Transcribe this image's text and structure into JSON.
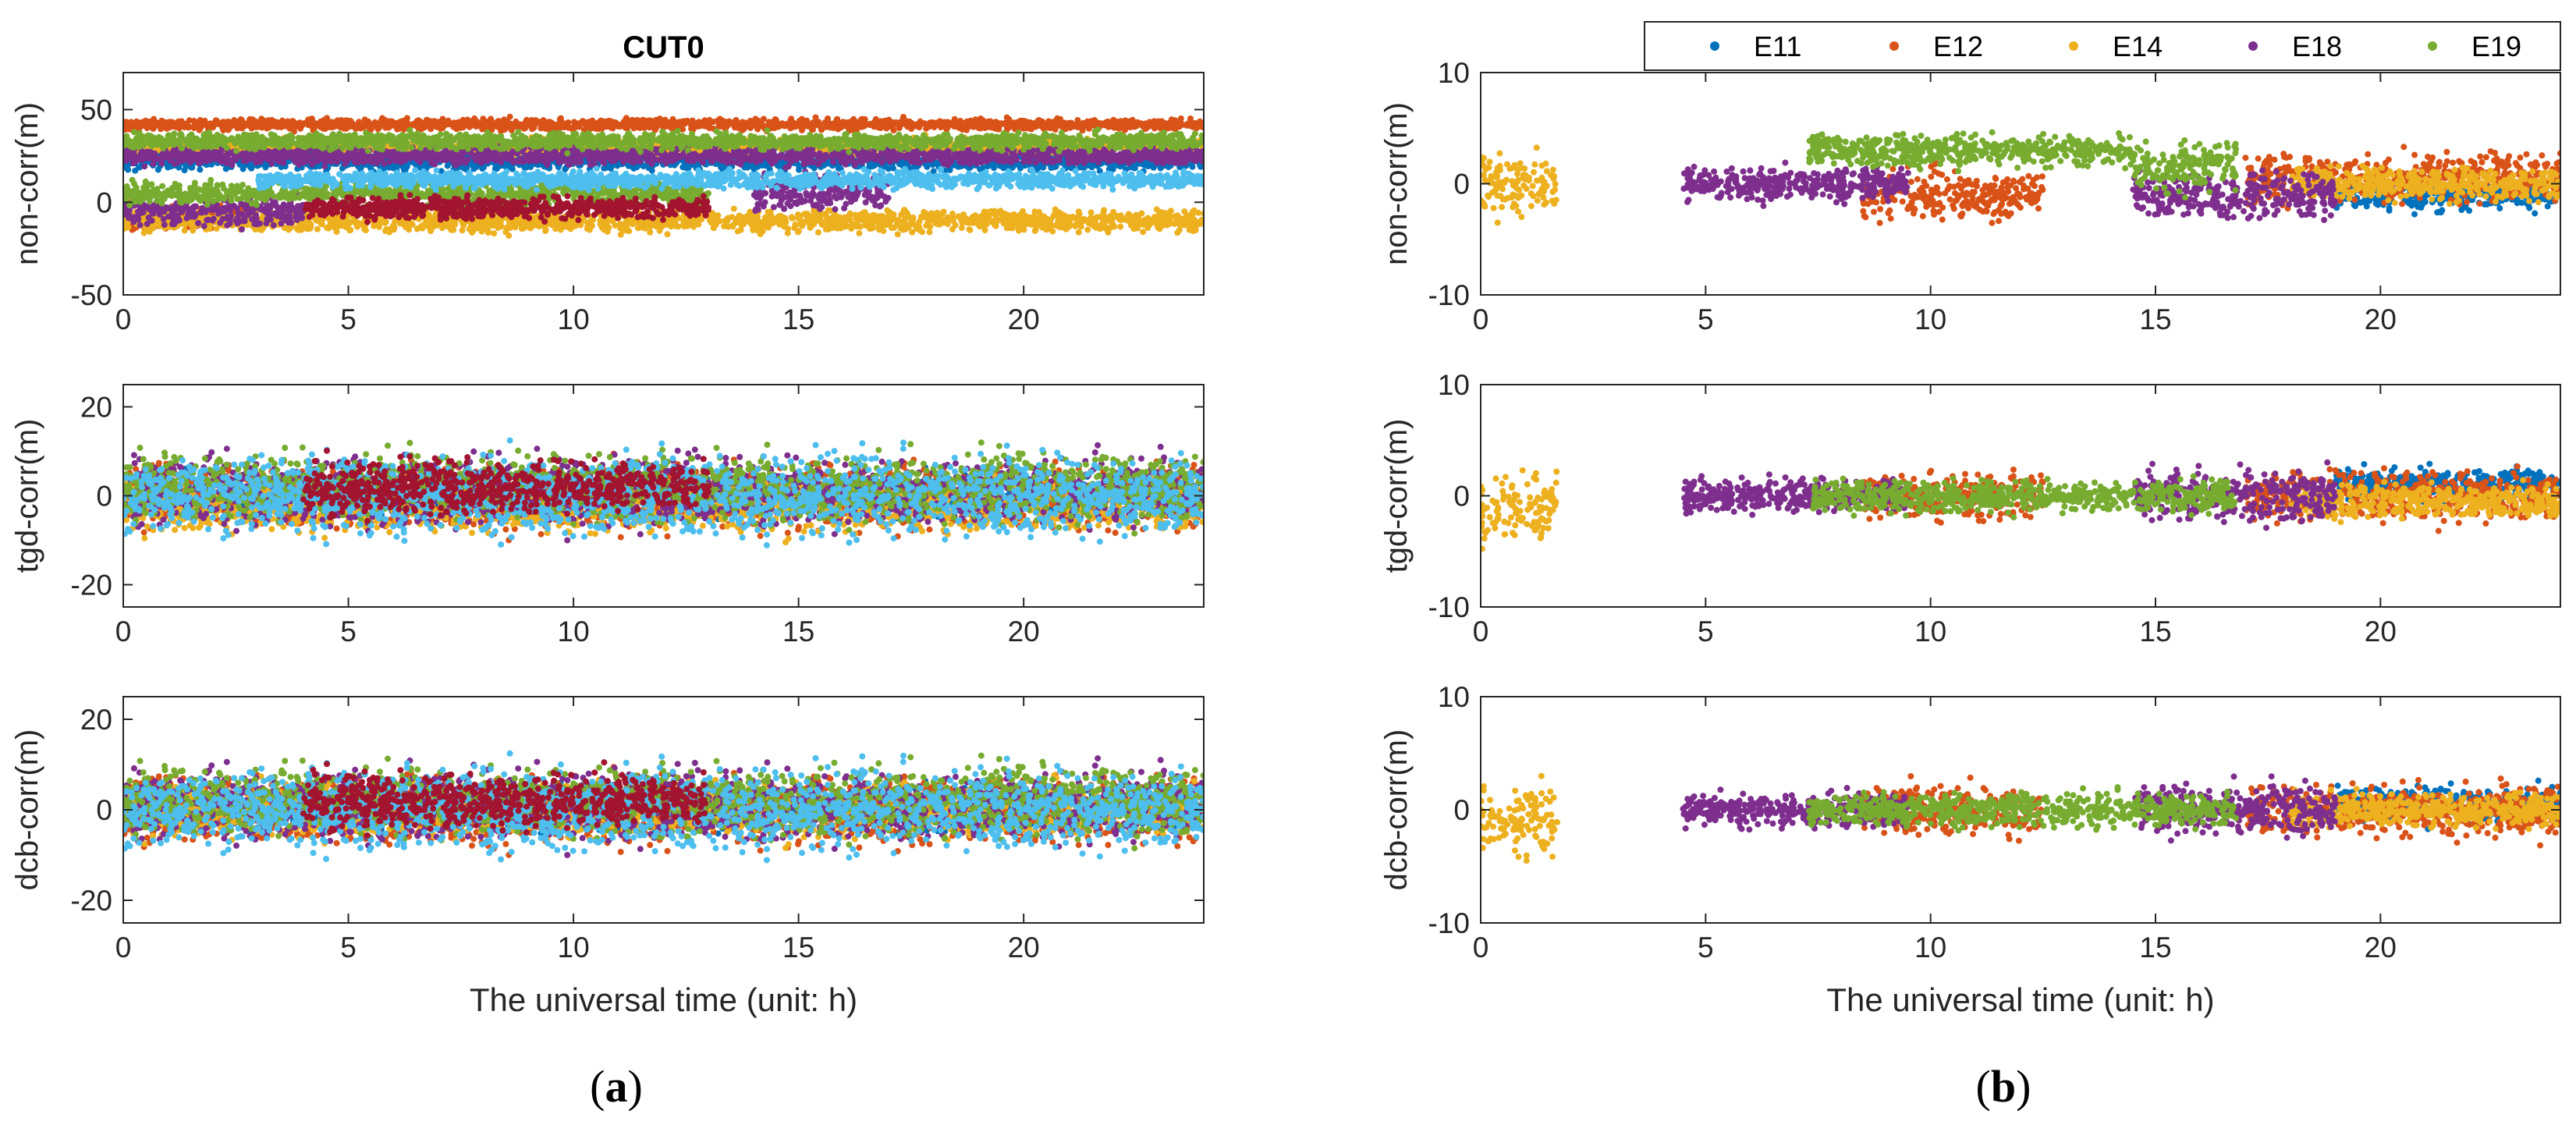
{
  "chart_data": [
    {
      "type": "scatter",
      "panel": "a",
      "title": "CUT0",
      "caption": "(a)",
      "xlabel": "The universal time (unit: h)",
      "xlim": [
        0,
        24
      ],
      "xticks": [
        0,
        5,
        10,
        15,
        20
      ],
      "subplots": [
        {
          "ylabel": "non-corr(m)",
          "ylim": [
            -50,
            70
          ],
          "yticks": [
            -50,
            0,
            50
          ],
          "series": [
            {
              "color": "#0072BD",
              "segments": [
                [
                  0,
                  24,
                  22,
                  3
                ]
              ]
            },
            {
              "color": "#D95319",
              "segments": [
                [
                  0,
                  24,
                  42,
                  2
                ],
                [
                  0,
                  3,
                  -8,
                  4
                ]
              ]
            },
            {
              "color": "#EDB120",
              "segments": [
                [
                  0,
                  24,
                  30,
                  3
                ],
                [
                  0,
                  24,
                  -10,
                  4
                ]
              ]
            },
            {
              "color": "#7E2F8E",
              "segments": [
                [
                  0,
                  24,
                  25,
                  3
                ],
                [
                  14,
                  17,
                  5,
                  6
                ],
                [
                  0,
                  4,
                  -5,
                  5
                ]
              ]
            },
            {
              "color": "#77AC30",
              "segments": [
                [
                  0,
                  24,
                  33,
                  3
                ],
                [
                  0,
                  13,
                  5,
                  4
                ]
              ]
            },
            {
              "color": "#4DBEEE",
              "segments": [
                [
                  3,
                  24,
                  12,
                  3
                ]
              ]
            },
            {
              "color": "#A2142F",
              "segments": [
                [
                  4,
                  13,
                  -3,
                  4
                ]
              ]
            }
          ]
        },
        {
          "ylabel": "tgd-corr(m)",
          "ylim": [
            -25,
            25
          ],
          "yticks": [
            -20,
            0,
            20
          ],
          "series": [
            {
              "color": "#0072BD",
              "segments": [
                [
                  0,
                  24,
                  0,
                  3
                ]
              ]
            },
            {
              "color": "#D95319",
              "segments": [
                [
                  0,
                  24,
                  0,
                  5
                ]
              ]
            },
            {
              "color": "#EDB120",
              "segments": [
                [
                  0,
                  24,
                  -2,
                  4
                ]
              ]
            },
            {
              "color": "#7E2F8E",
              "segments": [
                [
                  0,
                  24,
                  1,
                  5
                ]
              ]
            },
            {
              "color": "#77AC30",
              "segments": [
                [
                  0,
                  24,
                  2,
                  5
                ]
              ]
            },
            {
              "color": "#4DBEEE",
              "segments": [
                [
                  0,
                  24,
                  0,
                  6
                ]
              ]
            },
            {
              "color": "#A2142F",
              "segments": [
                [
                  4,
                  13,
                  2,
                  4
                ]
              ]
            }
          ]
        },
        {
          "ylabel": "dcb-corr(m)",
          "ylim": [
            -25,
            25
          ],
          "yticks": [
            -20,
            0,
            20
          ],
          "series": [
            {
              "color": "#0072BD",
              "segments": [
                [
                  0,
                  24,
                  0,
                  3
                ]
              ]
            },
            {
              "color": "#D95319",
              "segments": [
                [
                  0,
                  24,
                  0,
                  5
                ]
              ]
            },
            {
              "color": "#EDB120",
              "segments": [
                [
                  0,
                  24,
                  0,
                  4
                ]
              ]
            },
            {
              "color": "#7E2F8E",
              "segments": [
                [
                  0,
                  24,
                  1,
                  5
                ]
              ]
            },
            {
              "color": "#77AC30",
              "segments": [
                [
                  0,
                  24,
                  2,
                  5
                ]
              ]
            },
            {
              "color": "#4DBEEE",
              "segments": [
                [
                  0,
                  24,
                  0,
                  6
                ]
              ]
            },
            {
              "color": "#A2142F",
              "segments": [
                [
                  4,
                  13,
                  2,
                  4
                ]
              ]
            }
          ]
        }
      ]
    },
    {
      "type": "scatter",
      "panel": "b",
      "caption": "(b)",
      "xlabel": "The universal time (unit: h)",
      "xlim": [
        0,
        24
      ],
      "xticks": [
        0,
        5,
        10,
        15,
        20
      ],
      "legend": {
        "placement": "top",
        "entries": [
          "E11",
          "E12",
          "E14",
          "E18",
          "E19"
        ]
      },
      "subplots": [
        {
          "ylabel": "non-corr(m)",
          "ylim": [
            -10,
            10
          ],
          "yticks": [
            -10,
            0,
            10
          ],
          "series": [
            {
              "name": "E11",
              "color": "#0072BD",
              "segments": [
                [
                  19,
                  24,
                  -1,
                  1
                ]
              ]
            },
            {
              "name": "E12",
              "color": "#D95319",
              "segments": [
                [
                  8.5,
                  12.5,
                  -1,
                  1.5
                ],
                [
                  17,
                  24,
                  0.5,
                  1.5
                ]
              ]
            },
            {
              "name": "E14",
              "color": "#EDB120",
              "segments": [
                [
                  0,
                  1.7,
                  0,
                  2
                ],
                [
                  18,
                  24,
                  0,
                  1
                ]
              ]
            },
            {
              "name": "E18",
              "color": "#7E2F8E",
              "segments": [
                [
                  4.5,
                  9.5,
                  0,
                  1
                ],
                [
                  14.5,
                  19,
                  -1,
                  1.5
                ]
              ]
            },
            {
              "name": "E19",
              "color": "#77AC30",
              "segments": [
                [
                  7.3,
                  14.5,
                  3,
                  1
                ],
                [
                  14.5,
                  16.8,
                  1.5,
                  1.5
                ]
              ]
            }
          ]
        },
        {
          "ylabel": "tgd-corr(m)",
          "ylim": [
            -10,
            10
          ],
          "yticks": [
            -10,
            0,
            10
          ],
          "series": [
            {
              "name": "E11",
              "color": "#0072BD",
              "segments": [
                [
                  19,
                  24,
                  1,
                  1
                ]
              ]
            },
            {
              "name": "E12",
              "color": "#D95319",
              "segments": [
                [
                  8.5,
                  12.5,
                  0,
                  1.5
                ],
                [
                  17,
                  24,
                  0,
                  1.5
                ]
              ]
            },
            {
              "name": "E14",
              "color": "#EDB120",
              "segments": [
                [
                  0,
                  1.7,
                  -1,
                  2
                ],
                [
                  18,
                  24,
                  -0.5,
                  1
                ]
              ]
            },
            {
              "name": "E18",
              "color": "#7E2F8E",
              "segments": [
                [
                  4.5,
                  9.5,
                  0,
                  1
                ],
                [
                  14.5,
                  19,
                  0,
                  1.5
                ]
              ]
            },
            {
              "name": "E19",
              "color": "#77AC30",
              "segments": [
                [
                  7.3,
                  16.8,
                  0,
                  1
                ]
              ]
            }
          ]
        },
        {
          "ylabel": "dcb-corr(m)",
          "ylim": [
            -10,
            10
          ],
          "yticks": [
            -10,
            0,
            10
          ],
          "series": [
            {
              "name": "E11",
              "color": "#0072BD",
              "segments": [
                [
                  19,
                  24,
                  0.5,
                  1
                ]
              ]
            },
            {
              "name": "E12",
              "color": "#D95319",
              "segments": [
                [
                  8.5,
                  12.5,
                  0,
                  1.5
                ],
                [
                  17,
                  24,
                  0,
                  1.5
                ]
              ]
            },
            {
              "name": "E14",
              "color": "#EDB120",
              "segments": [
                [
                  0,
                  1.7,
                  -1,
                  2
                ],
                [
                  18,
                  24,
                  0,
                  1
                ]
              ]
            },
            {
              "name": "E18",
              "color": "#7E2F8E",
              "segments": [
                [
                  4.5,
                  9.5,
                  0,
                  1
                ],
                [
                  14.5,
                  19,
                  0,
                  1.5
                ]
              ]
            },
            {
              "name": "E19",
              "color": "#77AC30",
              "segments": [
                [
                  7.3,
                  16.8,
                  0,
                  1
                ]
              ]
            }
          ]
        }
      ]
    }
  ]
}
